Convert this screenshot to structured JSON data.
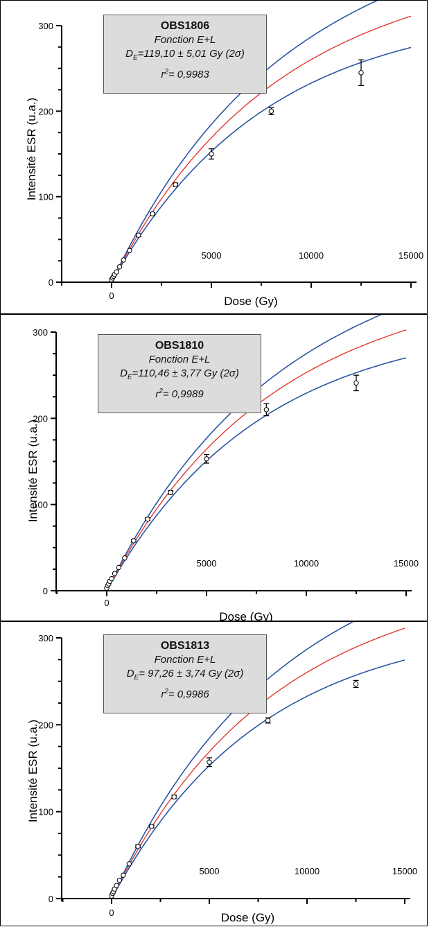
{
  "charts": [
    {
      "sample": "OBS1806",
      "function": "Fonction E+L",
      "de_value": "=119,10 ± 5,01 Gy (2σ)",
      "r2_value": "= 0,9983"
    },
    {
      "sample": "OBS1810",
      "function": "Fonction E+L",
      "de_value": "=110,46 ± 3,77 Gy (2σ)",
      "r2_value": "= 0,9989"
    },
    {
      "sample": "OBS1813",
      "function": "Fonction E+L",
      "de_value": "= 97,26 ± 3,74 Gy (2σ)",
      "r2_value": "= 0,9986"
    }
  ],
  "labels": {
    "de_prefix": "D",
    "de_sub": "E",
    "r2_prefix": "r",
    "r2_sup": "2"
  },
  "colors": {
    "fit_line": "#e03a2f",
    "envelope": "#2b55a3",
    "box_fill": "#dcdcdc"
  },
  "chart_data": [
    {
      "type": "scatter",
      "title": "OBS1806",
      "xlabel": "Dose (Gy)",
      "ylabel": "Intensité ESR (u.a.)",
      "xlim": [
        -2500,
        15500
      ],
      "ylim": [
        0,
        300
      ],
      "xticks": [
        0,
        5000,
        10000,
        15000
      ],
      "yticks": [
        0,
        100,
        200,
        300
      ],
      "series": [
        {
          "x": [
            0,
            50,
            100,
            150,
            250,
            400,
            600,
            900,
            1350,
            2050,
            3200,
            5000,
            8000,
            12500
          ],
          "y": [
            3,
            5,
            7,
            9,
            12,
            18,
            26,
            37,
            55,
            80,
            114,
            150,
            200,
            245
          ],
          "err": [
            0.5,
            0.5,
            0.5,
            0.5,
            0.5,
            1,
            1,
            1,
            1.5,
            1.5,
            2,
            6,
            4,
            15
          ]
        }
      ],
      "fit": {
        "a": 340,
        "k": 0.00013,
        "b": 0.0013
      },
      "envelope_upper": {
        "a": 360,
        "k": 0.00013,
        "b": 0.0025
      },
      "envelope_lower": {
        "a": 320,
        "k": 0.00013,
        "b": 0.0
      }
    },
    {
      "type": "scatter",
      "title": "OBS1810",
      "xlabel": "Dose (Gy)",
      "ylabel": "Intensité ESR (u.a.)",
      "xlim": [
        -2500,
        15500
      ],
      "ylim": [
        0,
        300
      ],
      "xticks": [
        0,
        5000,
        10000,
        15000
      ],
      "yticks": [
        0,
        100,
        200,
        300
      ],
      "series": [
        {
          "x": [
            0,
            50,
            100,
            150,
            250,
            400,
            600,
            900,
            1350,
            2050,
            3200,
            5000,
            8000,
            12500
          ],
          "y": [
            3,
            6,
            8,
            11,
            14,
            20,
            27,
            38,
            58,
            83,
            114,
            153,
            210,
            241
          ],
          "err": [
            0.5,
            0.5,
            0.5,
            0.5,
            0.5,
            1,
            1,
            1,
            1.5,
            1.5,
            2,
            5,
            7,
            9
          ]
        }
      ],
      "fit": {
        "a": 330,
        "k": 0.00013,
        "b": 0.0013
      },
      "envelope_upper": {
        "a": 345,
        "k": 0.00013,
        "b": 0.0024
      },
      "envelope_lower": {
        "a": 315,
        "k": 0.00013,
        "b": 0.0
      }
    },
    {
      "type": "scatter",
      "title": "OBS1813",
      "xlabel": "Dose (Gy)",
      "ylabel": "Intensité ESR (u.a.)",
      "xlim": [
        -2500,
        15500
      ],
      "ylim": [
        0,
        300
      ],
      "xticks": [
        0,
        5000,
        10000,
        15000
      ],
      "yticks": [
        0,
        100,
        200,
        300
      ],
      "series": [
        {
          "x": [
            0,
            50,
            100,
            150,
            250,
            400,
            600,
            900,
            1350,
            2050,
            3200,
            5000,
            8000,
            12500
          ],
          "y": [
            3,
            6,
            8,
            11,
            15,
            21,
            27,
            40,
            60,
            83,
            117,
            157,
            205,
            247
          ],
          "err": [
            0.5,
            0.5,
            0.5,
            0.5,
            0.5,
            1,
            1,
            1,
            1.5,
            1.5,
            2,
            5,
            3,
            4
          ]
        }
      ],
      "fit": {
        "a": 340,
        "k": 0.00013,
        "b": 0.0013
      },
      "envelope_upper": {
        "a": 360,
        "k": 0.00013,
        "b": 0.0025
      },
      "envelope_lower": {
        "a": 320,
        "k": 0.00013,
        "b": 0.0
      }
    }
  ]
}
